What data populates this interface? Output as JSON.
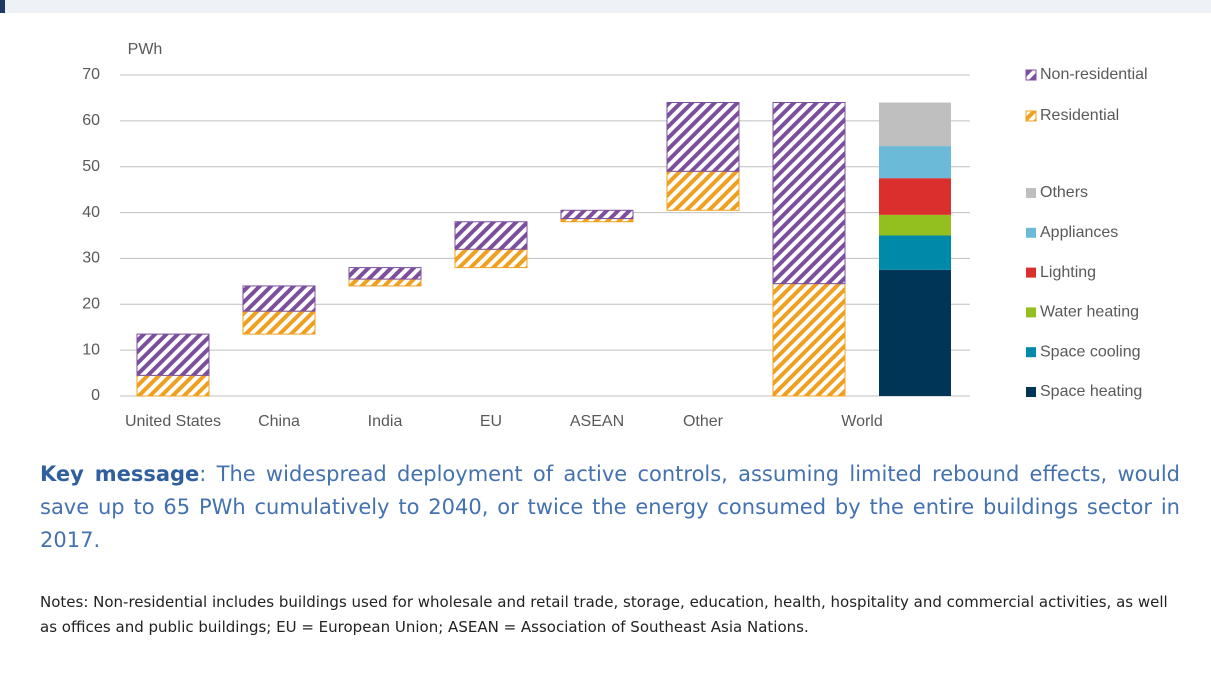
{
  "chart_data": {
    "type": "waterfall",
    "y_label": "PWh",
    "categories": [
      "United States",
      "China",
      "India",
      "EU",
      "ASEAN",
      "Other",
      "World"
    ],
    "series": [
      {
        "name": "Residential",
        "color": "#f0a020",
        "values": [
          4.5,
          5,
          1.5,
          4,
          0.7,
          8.5,
          24.5
        ]
      },
      {
        "name": "Non-residential",
        "color": "#7b4f9d",
        "values": [
          9,
          5.5,
          2.5,
          6,
          1.8,
          15,
          39.5
        ]
      }
    ],
    "end_use": [
      {
        "name": "Space heating",
        "color": "#003557",
        "value": 27.5
      },
      {
        "name": "Space cooling",
        "color": "#0089a8",
        "value": 7.5
      },
      {
        "name": "Water heating",
        "color": "#93c01f",
        "value": 4.5
      },
      {
        "name": "Lighting",
        "color": "#d9302d",
        "value": 8
      },
      {
        "name": "Appliances",
        "color": "#6bbbd8",
        "value": 7
      },
      {
        "name": "Others",
        "color": "#bfbfbf",
        "value": 9.5
      }
    ],
    "ylim": [
      0,
      70
    ],
    "yticks": [
      0,
      10,
      20,
      30,
      40,
      50,
      60,
      70
    ],
    "grid": true
  },
  "key_message": {
    "label": "Key message",
    "text": ":  The widespread deployment of active controls, assuming limited rebound effects, would save up to 65 PWh cumulatively to 2040, or twice the energy consumed by the entire buildings sector in 2017."
  },
  "notes": "Notes: Non-residential includes buildings used for wholesale and retail trade, storage, education, health, hospitality and commercial activities, as well as offices and public buildings; EU = European Union; ASEAN = Association of Southeast Asia Nations."
}
